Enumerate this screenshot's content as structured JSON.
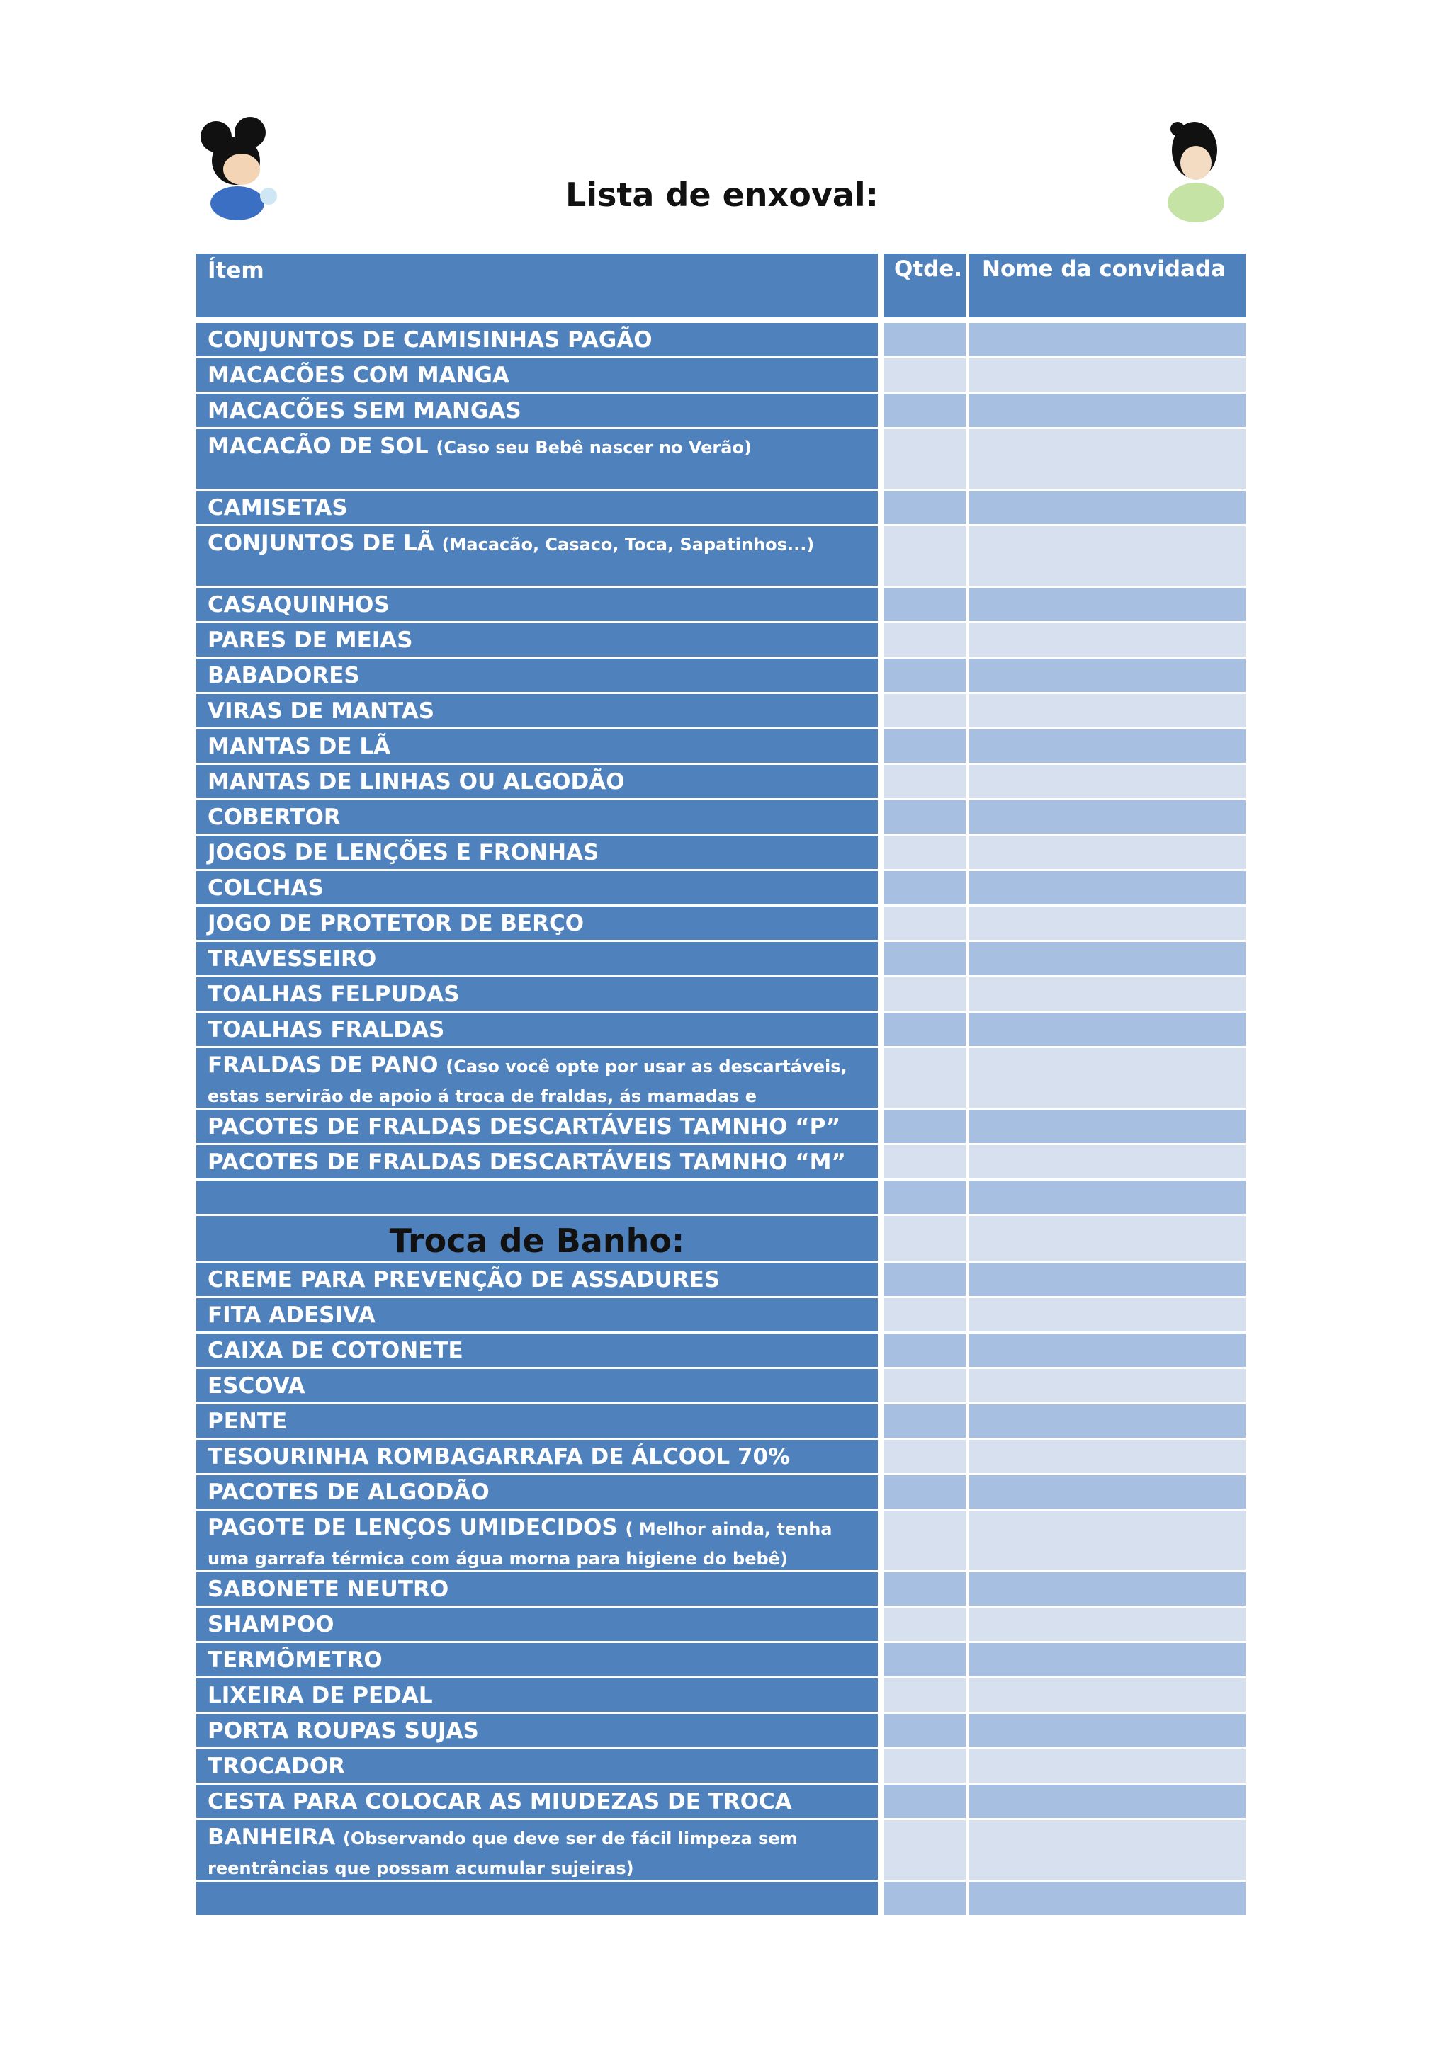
{
  "header": {
    "title": "Lista de enxoval:"
  },
  "table": {
    "columns": [
      "Ítem",
      "Qtde.",
      "Nome da convidada"
    ],
    "sections": [
      {
        "rows": [
          {
            "item": "CONJUNTOS DE CAMISINHAS PAGÃO"
          },
          {
            "item": "MACACÕES COM MANGA"
          },
          {
            "item": "MACACÕES SEM MANGAS"
          },
          {
            "item": "MACACÃO DE SOL",
            "note": "(Caso seu Bebê nascer no Verão)"
          },
          {
            "item": "CAMISETAS"
          },
          {
            "item": "CONJUNTOS DE LÃ",
            "note": "(Macacão, Casaco, Toca, Sapatinhos...)"
          },
          {
            "item": "CASAQUINHOS"
          },
          {
            "item": "PARES DE MEIAS"
          },
          {
            "item": "BABADORES"
          },
          {
            "item": "VIRAS DE MANTAS"
          },
          {
            "item": "MANTAS DE LÃ"
          },
          {
            "item": "MANTAS DE LINHAS OU ALGODÃO"
          },
          {
            "item": "COBERTOR"
          },
          {
            "item": "JOGOS DE LENÇÕES E FRONHAS"
          },
          {
            "item": "COLCHAS"
          },
          {
            "item": "JOGO DE PROTETOR DE BERÇO"
          },
          {
            "item": "TRAVESSEIRO"
          },
          {
            "item": "TOALHAS FELPUDAS"
          },
          {
            "item": "TOALHAS FRALDAS"
          },
          {
            "item": "FRALDAS DE PANO",
            "note": "(Caso você opte por usar as descartáveis, estas servirão de apoio á troca de fraldas, ás mamadas e alimentação, etc...)"
          },
          {
            "item": "PACOTES DE FRALDAS DESCARTÁVEIS TAMNHO “P”"
          },
          {
            "item": "PACOTES DE FRALDAS DESCARTÁVEIS TAMNHO “M”"
          }
        ]
      },
      {
        "title": "Troca de Banho:",
        "rows": [
          {
            "item": "CREME PARA PREVENÇÃO DE ASSADURES"
          },
          {
            "item": "FITA ADESIVA"
          },
          {
            "item": "CAIXA DE COTONETE"
          },
          {
            "item": "ESCOVA"
          },
          {
            "item": "PENTE"
          },
          {
            "item": "TESOURINHA ROMBAGARRAFA DE ÁLCOOL 70%"
          },
          {
            "item": "PACOTES DE ALGODÃO"
          },
          {
            "item": "PAGOTE DE LENÇOS UMIDECIDOS",
            "note": "( Melhor ainda, tenha uma garrafa térmica com água morna para higiene do bebê)"
          },
          {
            "item": "SABONETE NEUTRO"
          },
          {
            "item": "SHAMPOO"
          },
          {
            "item": "TERMÔMETRO"
          },
          {
            "item": "LIXEIRA DE PEDAL"
          },
          {
            "item": "PORTA ROUPAS SUJAS"
          },
          {
            "item": "TROCADOR"
          },
          {
            "item": "CESTA PARA COLOCAR AS MIUDEZAS DE TROCA"
          },
          {
            "item": "BANHEIRA",
            "note": "(Observando que deve ser de fácil limpeza sem reentrâncias que possam acumular sujeiras)"
          }
        ]
      }
    ]
  }
}
